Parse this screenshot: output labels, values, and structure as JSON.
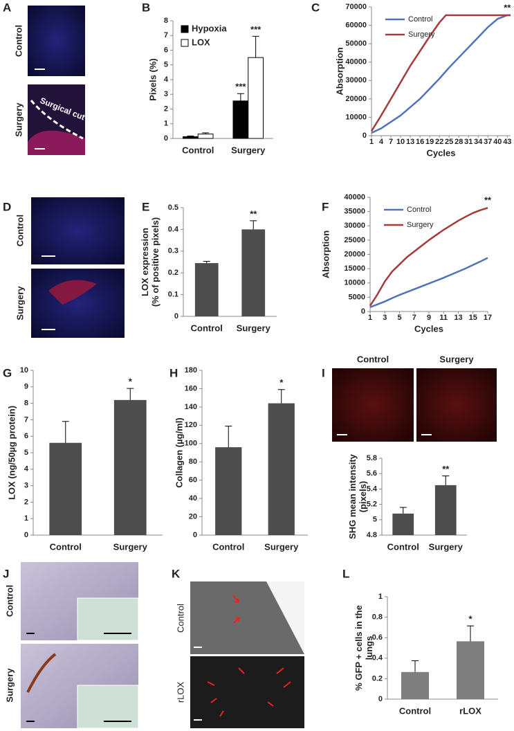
{
  "image_panels": [
    {
      "letter": "A",
      "labels": [
        "Control",
        "Surgery"
      ],
      "annotation": "Surgical cut"
    },
    {
      "letter": "D",
      "labels": [
        "Control",
        "Surgery"
      ]
    },
    {
      "letter": "I",
      "labels": [
        "Control",
        "Surgery"
      ]
    },
    {
      "letter": "J",
      "labels": [
        "Control",
        "Surgery"
      ]
    },
    {
      "letter": "K",
      "labels": [
        "Control",
        "rLOX"
      ]
    }
  ],
  "chart_data": [
    {
      "type": "bar",
      "letter": "B",
      "ylabel": [
        "Pixels (%)"
      ],
      "categories": [
        "Control",
        "Surgery"
      ],
      "legend": "upper left",
      "series": [
        {
          "name": "Hypoxia",
          "color": "#000000",
          "values": [
            0.12,
            2.55
          ],
          "errors": [
            0.05,
            0.5
          ],
          "significance": [
            null,
            "***"
          ]
        },
        {
          "name": "LOX",
          "color": "#ffffff",
          "values": [
            0.3,
            5.5
          ],
          "errors": [
            0.08,
            1.45
          ],
          "significance": [
            null,
            "***"
          ]
        }
      ],
      "ylim": [
        0,
        8
      ],
      "yticks": [
        0,
        1,
        2,
        3,
        4,
        5,
        6,
        7,
        8
      ]
    },
    {
      "type": "line",
      "letter": "C",
      "xlabel": "Cycles",
      "ylabel": [
        "Absorption"
      ],
      "legend": "upper left",
      "annotation": "**",
      "x": [
        1,
        4,
        7,
        10,
        13,
        16,
        19,
        22,
        24,
        25,
        28,
        31,
        34,
        37,
        40,
        43,
        44
      ],
      "series": [
        {
          "name": "Control",
          "color": "#4f72b8",
          "values": [
            1500,
            4000,
            7500,
            11000,
            15500,
            20000,
            25500,
            31000,
            35000,
            37000,
            42500,
            48000,
            53500,
            59000,
            63500,
            65500,
            65500
          ]
        },
        {
          "name": "Surgery",
          "color": "#a23b3b",
          "values": [
            2500,
            11000,
            20000,
            29000,
            38000,
            46000,
            54000,
            61500,
            65500,
            65500,
            65500,
            65500,
            65500,
            65500,
            65500,
            65500,
            65500
          ]
        }
      ],
      "xlim": [
        1,
        44
      ],
      "xticks": [
        1,
        4,
        7,
        10,
        13,
        16,
        19,
        22,
        25,
        28,
        31,
        34,
        37,
        40,
        43
      ],
      "ylim": [
        0,
        70000
      ],
      "yticks": [
        0,
        10000,
        20000,
        30000,
        40000,
        50000,
        60000,
        70000
      ]
    },
    {
      "type": "bar",
      "letter": "E",
      "ylabel": [
        "LOX expression",
        "(% of positive pixels)"
      ],
      "categories": [
        "Control",
        "Surgery"
      ],
      "color": "#4d4d4d",
      "values": [
        0.245,
        0.4
      ],
      "errors": [
        0.008,
        0.04
      ],
      "significance": [
        null,
        "**"
      ],
      "ylim": [
        0,
        0.5
      ],
      "yticks": [
        0,
        0.1,
        0.2,
        0.3,
        0.4,
        0.5
      ]
    },
    {
      "type": "line",
      "letter": "F",
      "xlabel": "Cycles",
      "ylabel": [
        "Absorption"
      ],
      "legend": "upper left",
      "annotation": "**",
      "x": [
        1,
        2,
        3,
        4,
        5,
        6,
        7,
        8,
        9,
        10,
        11,
        12,
        13,
        14,
        15,
        16,
        17
      ],
      "series": [
        {
          "name": "Control",
          "color": "#4f72b8",
          "values": [
            1500,
            2500,
            3500,
            4700,
            5800,
            6800,
            7800,
            8800,
            9800,
            10800,
            11800,
            12900,
            14000,
            15100,
            16300,
            17500,
            18800
          ]
        },
        {
          "name": "Surgery",
          "color": "#a23b3b",
          "values": [
            2000,
            6000,
            10500,
            14000,
            16500,
            19000,
            21000,
            23000,
            25000,
            26800,
            28600,
            30200,
            31800,
            33200,
            34500,
            35500,
            36300
          ]
        }
      ],
      "xlim": [
        1,
        17
      ],
      "xticks": [
        1,
        3,
        5,
        7,
        9,
        11,
        13,
        15,
        17
      ],
      "ylim": [
        0,
        40000
      ],
      "yticks": [
        0,
        5000,
        10000,
        15000,
        20000,
        25000,
        30000,
        35000,
        40000
      ]
    },
    {
      "type": "bar",
      "letter": "G",
      "ylabel": [
        "LOX (ng/50µg protein)"
      ],
      "categories": [
        "Control",
        "Surgery"
      ],
      "color": "#4d4d4d",
      "values": [
        5.6,
        8.2
      ],
      "errors": [
        1.3,
        0.7
      ],
      "significance": [
        null,
        "*"
      ],
      "ylim": [
        0,
        10
      ],
      "yticks": [
        0,
        1,
        2,
        3,
        4,
        5,
        6,
        7,
        8,
        9,
        10
      ]
    },
    {
      "type": "bar",
      "letter": "H",
      "ylabel": [
        "Collagen (µg/ml)"
      ],
      "categories": [
        "Control",
        "Surgery"
      ],
      "color": "#4d4d4d",
      "values": [
        96,
        144
      ],
      "errors": [
        23,
        15
      ],
      "significance": [
        null,
        "*"
      ],
      "ylim": [
        0,
        180
      ],
      "yticks": [
        0,
        20,
        40,
        60,
        80,
        100,
        120,
        140,
        160,
        180
      ]
    },
    {
      "type": "bar",
      "ylabel": [
        "SHG mean intensity",
        "(pixels)"
      ],
      "categories": [
        "Control",
        "Surgery"
      ],
      "color": "#4d4d4d",
      "values": [
        5.08,
        5.45
      ],
      "errors": [
        0.08,
        0.12
      ],
      "significance": [
        null,
        "**"
      ],
      "ylim": [
        4.8,
        5.8
      ],
      "yticks": [
        4.8,
        5,
        5.2,
        5.4,
        5.6,
        5.8
      ]
    },
    {
      "type": "bar",
      "letter": "L",
      "ylabel": [
        "% GFP + cells in the",
        "lungs"
      ],
      "categories": [
        "Control",
        "rLOX"
      ],
      "color": "#7f7f7f",
      "values": [
        0.265,
        0.565
      ],
      "errors": [
        0.11,
        0.15
      ],
      "significance": [
        null,
        "*"
      ],
      "ylim": [
        0,
        1
      ],
      "yticks": [
        0,
        0.2,
        0.4,
        0.6,
        0.8,
        1
      ]
    }
  ]
}
